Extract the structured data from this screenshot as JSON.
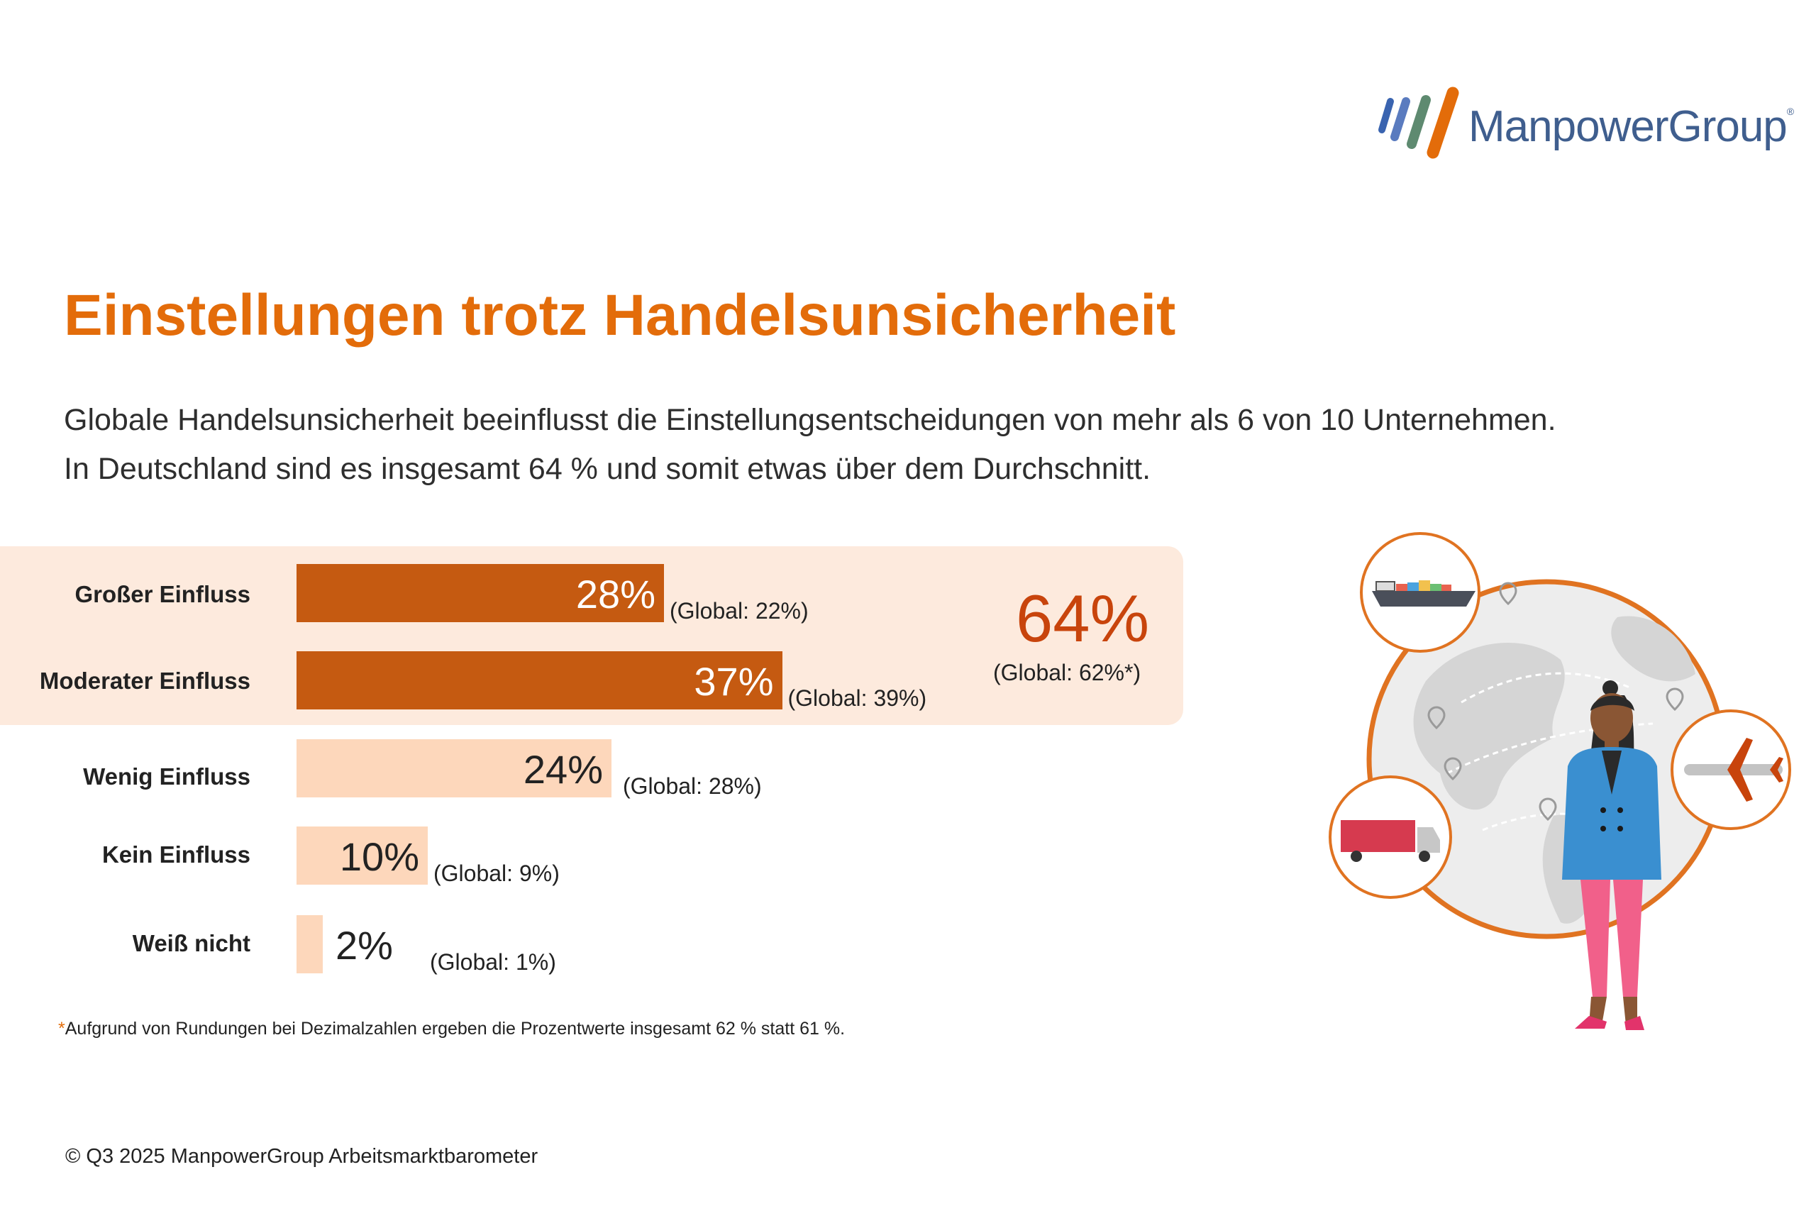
{
  "logo": {
    "name": "ManpowerGroup",
    "reg_mark": "®"
  },
  "title": "Einstellungen trotz Handelsunsicherheit",
  "subtitle": {
    "line1": "Globale Handelsunsicherheit beeinflusst die Einstellungsentscheidungen von mehr als 6 von 10 Unternehmen.",
    "line2": "In Deutschland sind es insgesamt 64 % und somit etwas über dem Durchschnitt."
  },
  "chart_data": {
    "type": "bar",
    "orientation": "horizontal",
    "title": "Einstellungen trotz Handelsunsicherheit",
    "categories": [
      "Großer Einfluss",
      "Moderater Einfluss",
      "Wenig Einfluss",
      "Kein Einfluss",
      "Weiß nicht"
    ],
    "series": [
      {
        "name": "Deutschland",
        "values": [
          28,
          37,
          24,
          10,
          2
        ],
        "labels": [
          "28%",
          "37%",
          "24%",
          "10%",
          "2%"
        ]
      },
      {
        "name": "Global",
        "values": [
          22,
          39,
          28,
          9,
          1
        ],
        "labels": [
          "(Global:  22%)",
          "(Global:  39%)",
          "(Global:  28%)",
          "(Global:  9%)",
          "(Global:  1%)"
        ]
      }
    ],
    "highlighted_categories": [
      "Großer Einfluss",
      "Moderater Einfluss"
    ],
    "highlight_total": {
      "value": 64,
      "label": "64%",
      "global_label": "(Global:  62%*)"
    },
    "unit": "%",
    "xlim": [
      0,
      100
    ]
  },
  "colors": {
    "accent": "#e36c0a",
    "bar_dark": "#c55a11",
    "bar_light": "#fdd7bb",
    "highlight_bg": "#fdeadd",
    "total_text": "#c8440c"
  },
  "footnote": {
    "star": "*",
    "text": "Aufgrund von Rundungen bei Dezimalzahlen ergeben die Prozentwerte insgesamt 62 % statt 61 %."
  },
  "copyright": "© Q3 2025 ManpowerGroup Arbeitsmarktbarometer",
  "illustration_icons": [
    "globe-icon",
    "ship-icon",
    "airplane-icon",
    "truck-icon",
    "businesswoman-icon"
  ]
}
